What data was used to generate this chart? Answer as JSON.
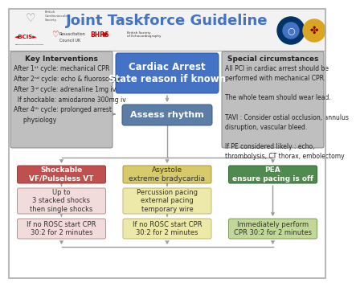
{
  "title": "Joint Taskforce Guideline",
  "title_color": "#4472C4",
  "title_fontsize": 13,
  "bg_color": "#ffffff",
  "cardiac_arrest_box": {
    "text": "Cardiac Arrest\nState reason if known",
    "facecolor": "#4472C4",
    "textcolor": "white",
    "fontsize": 8.5,
    "bold": true
  },
  "assess_rhythm_box": {
    "text": "Assess rhythm",
    "facecolor": "#5B7DA6",
    "textcolor": "white",
    "fontsize": 8,
    "bold": true
  },
  "key_interventions": {
    "title": "Key Interventions",
    "lines": [
      "After 1ˢᵗ cycle: mechanical CPR",
      "After 2ⁿᵈ cycle: echo & fluoroscopy",
      "After 3ʳᵈ cycle: adrenaline 1mg iv",
      "  If shockable: amiodarone 300mg iv",
      "After 4ᵗʰ cycle: prolonged arrest",
      "     physiology"
    ],
    "facecolor": "#BFBFBF",
    "textcolor": "#222222",
    "title_fontsize": 6.5,
    "text_fontsize": 5.5
  },
  "special_circumstances": {
    "title": "Special circumstances",
    "lines": [
      "All PCI in cardiac arrest should be",
      "performed with mechanical CPR.",
      "",
      "The whole team should wear lead.",
      "",
      "TAVI : Consider ostial occlusion, annulus",
      "disruption, vascular bleed.",
      "",
      "If PE considered likely : echo,",
      "thrombolysis, CT thorax, embolectomy"
    ],
    "facecolor": "#BFBFBF",
    "textcolor": "#222222",
    "title_fontsize": 6.5,
    "text_fontsize": 5.5
  },
  "shockable_box": {
    "text": "Shockable\nVF/Pulseless VT",
    "facecolor": "#C0504D",
    "textcolor": "white",
    "fontsize": 6.5,
    "bold": true
  },
  "shockable_sub": {
    "text": "Up to\n3 stacked shocks\nthen single shocks",
    "facecolor": "#F2DCDB",
    "textcolor": "#333333",
    "fontsize": 6
  },
  "shockable_cpr": {
    "text": "If no ROSC start CPR\n30:2 for 2 minutes",
    "facecolor": "#F2DCDB",
    "textcolor": "#333333",
    "fontsize": 6
  },
  "asystole_box": {
    "text": "Asystole\nextreme bradycardia",
    "facecolor": "#D8C96A",
    "textcolor": "#333333",
    "fontsize": 6.5,
    "bold": false
  },
  "asystole_sub": {
    "text": "Percussion pacing\nexternal pacing\ntemporary wire",
    "facecolor": "#EDE9A8",
    "textcolor": "#333333",
    "fontsize": 6
  },
  "asystole_cpr": {
    "text": "If no ROSC start CPR\n30:2 for 2 minutes",
    "facecolor": "#EDE9A8",
    "textcolor": "#333333",
    "fontsize": 6
  },
  "pea_box": {
    "text": "PEA\nensure pacing is off",
    "facecolor": "#4F8A4F",
    "textcolor": "white",
    "fontsize": 6.5,
    "bold": true
  },
  "pea_cpr": {
    "text": "Immediately perform\nCPR 30:2 for 2 minutes",
    "facecolor": "#C4D79B",
    "textcolor": "#333333",
    "fontsize": 6
  },
  "arrow_color": "#999999",
  "arrow_lw": 1.0,
  "header_bg": "#f2f2f2",
  "section_bg": "#e8e8e8",
  "logo_left_text": "British\nCardiovascular\nSociety",
  "logo_bcis": "BCIS",
  "logo_resus": "Resuscitation\nCouncil UK",
  "logo_bhrs": "BHRS",
  "logo_bse": "British Society\nof Echocardiography"
}
